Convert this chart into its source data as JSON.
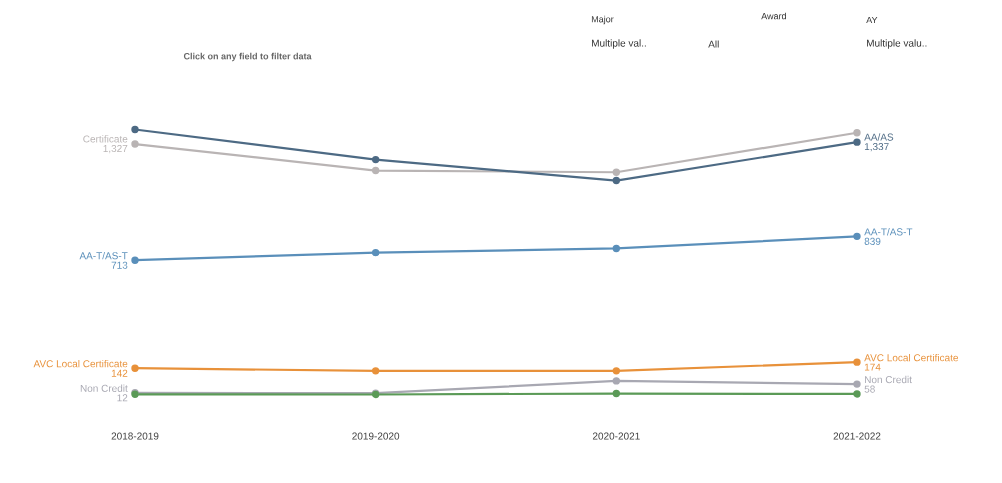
{
  "chart_data": {
    "type": "line",
    "subtitle": "Click on any field to filter data",
    "annotations": [
      "Major",
      "Multiple val..",
      "All",
      "Award",
      "AY",
      "Multiple valu.."
    ],
    "categories": [
      "2018-2019",
      "2019-2020",
      "2020-2021",
      "2021-2022"
    ],
    "tick_labels": "x",
    "marker": "circle",
    "line_style": "solid",
    "series": [
      {
        "name": "Certificate",
        "color": "#b9b4b4",
        "values": [
          1327,
          1187,
          1178,
          1387
        ],
        "value_labels": [
          "1,327",
          null,
          null,
          null
        ]
      },
      {
        "name": "AA/AS",
        "color": "#4d6a84",
        "values": [
          1404,
          1245,
          1134,
          1337
        ],
        "value_labels": [
          null,
          null,
          null,
          "1,337"
        ]
      },
      {
        "name": "AA-T/AS-T",
        "color": "#5a8fba",
        "values": [
          713,
          753,
          775,
          839
        ],
        "value_labels": [
          "713",
          null,
          null,
          "839"
        ]
      },
      {
        "name": "AVC Local Certificate",
        "color": "#e8913a",
        "values": [
          142,
          128,
          128,
          174
        ],
        "value_labels": [
          "142",
          null,
          null,
          "174"
        ]
      },
      {
        "name": "Non Credit",
        "color": "#a8a8b2",
        "values": [
          12,
          10,
          75,
          58
        ],
        "value_labels": [
          "12",
          null,
          null,
          "58"
        ]
      },
      {
        "color": "#5b9a57",
        "values": [
          4,
          3,
          8,
          6
        ]
      }
    ]
  }
}
